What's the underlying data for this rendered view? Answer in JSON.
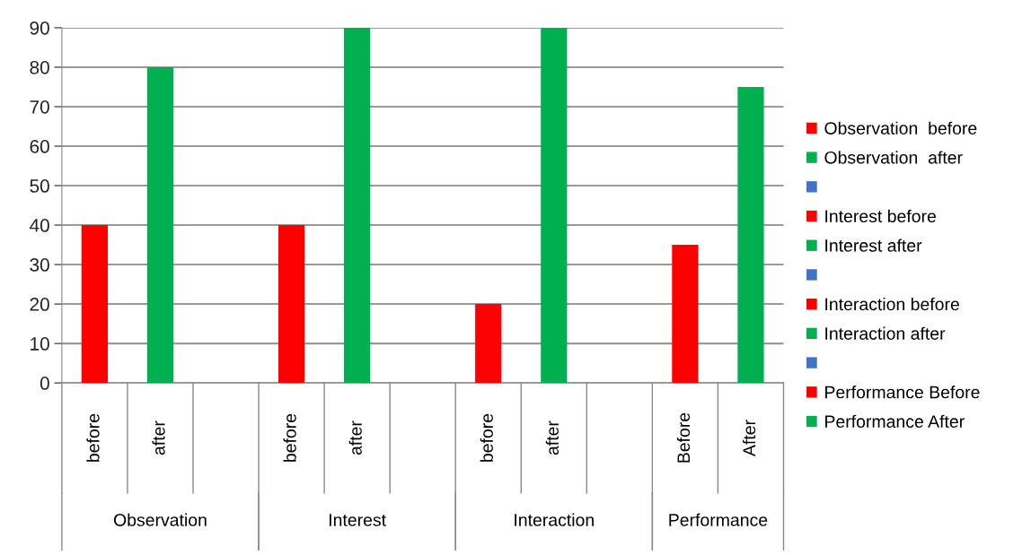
{
  "chart_data": {
    "type": "bar",
    "categories": [
      "before",
      "after",
      null,
      "before",
      "after",
      null,
      "before",
      "after",
      null,
      "Before",
      "After"
    ],
    "series": [
      {
        "name": "Observation  before",
        "color": "#ff0000",
        "values": [
          40,
          null,
          null,
          null,
          null,
          null,
          null,
          null,
          null,
          null,
          null
        ]
      },
      {
        "name": "Observation  after",
        "color": "#00b050",
        "values": [
          null,
          80,
          null,
          null,
          null,
          null,
          null,
          null,
          null,
          null,
          null
        ]
      },
      {
        "color": "#4472c4",
        "values": [
          null,
          null,
          null,
          null,
          null,
          null,
          null,
          null,
          null,
          null,
          null
        ]
      },
      {
        "name": "Interest before",
        "color": "#ff0000",
        "values": [
          null,
          null,
          null,
          40,
          null,
          null,
          null,
          null,
          null,
          null,
          null
        ]
      },
      {
        "name": "Interest after",
        "color": "#00b050",
        "values": [
          null,
          null,
          null,
          null,
          90,
          null,
          null,
          null,
          null,
          null,
          null
        ]
      },
      {
        "color": "#4472c4",
        "values": [
          null,
          null,
          null,
          null,
          null,
          null,
          null,
          null,
          null,
          null,
          null
        ]
      },
      {
        "name": "Interaction before",
        "color": "#ff0000",
        "values": [
          null,
          null,
          null,
          null,
          null,
          null,
          20,
          null,
          null,
          null,
          null
        ]
      },
      {
        "name": "Interaction after",
        "color": "#00b050",
        "values": [
          null,
          null,
          null,
          null,
          null,
          null,
          null,
          90,
          null,
          null,
          null
        ]
      },
      {
        "color": "#4472c4",
        "values": [
          null,
          null,
          null,
          null,
          null,
          null,
          null,
          null,
          null,
          null,
          null
        ]
      },
      {
        "name": "Performance Before",
        "color": "#ff0000",
        "values": [
          null,
          null,
          null,
          null,
          null,
          null,
          null,
          null,
          null,
          35,
          null
        ]
      },
      {
        "name": "Performance After",
        "color": "#00b050",
        "values": [
          null,
          null,
          null,
          null,
          null,
          null,
          null,
          null,
          null,
          null,
          75
        ]
      }
    ],
    "annotations": [
      "Observation",
      "Interest",
      "Interaction",
      "Performance"
    ],
    "ylim": [
      0,
      90
    ],
    "yticks": [
      0,
      10,
      20,
      30,
      40,
      50,
      60,
      70,
      80,
      90
    ],
    "grid": "y",
    "legend": "right"
  }
}
